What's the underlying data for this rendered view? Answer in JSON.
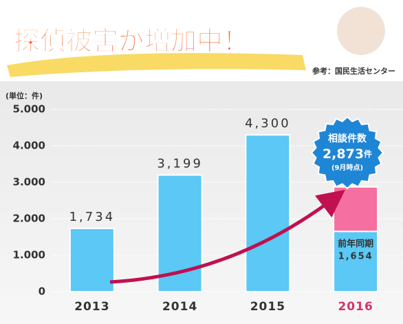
{
  "chart_data": {
    "type": "bar",
    "title": "探偵被害が増加中！",
    "source": "参考：国民生活センター",
    "unit_label": "(単位：件)",
    "categories": [
      "2013",
      "2014",
      "2015",
      "2016"
    ],
    "category_label_colors": [
      "#333333",
      "#333333",
      "#333333",
      "#d6336c"
    ],
    "series": [
      {
        "color": "#5bc8f5",
        "values": [
          1734,
          3199,
          4300,
          1654
        ],
        "value_labels": [
          "1,734",
          "3,199",
          "4,300",
          "1,654"
        ]
      },
      {
        "color": "#f56fa0",
        "values": [
          null,
          null,
          null,
          1219
        ]
      }
    ],
    "segment_label": "前年同期",
    "callout": {
      "title": "相談件数",
      "total": 2873,
      "total_label": "2,873",
      "unit": "件",
      "note": "(9月時点)"
    },
    "ylim": [
      0,
      5000
    ],
    "yticks": [
      0,
      {
        "value": 1000,
        "label": "1.000"
      },
      {
        "value": 2000,
        "label": "2.000"
      },
      {
        "value": 3000,
        "label": "3.000"
      },
      {
        "value": 4000,
        "label": "4.000"
      },
      {
        "value": 5000,
        "label": "5.000"
      }
    ],
    "grid": true
  }
}
